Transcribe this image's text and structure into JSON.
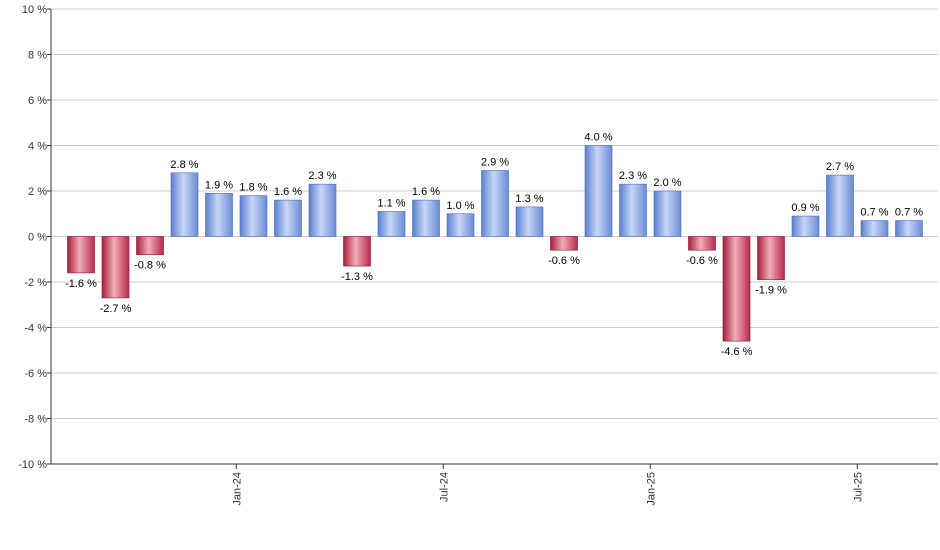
{
  "chart_data": {
    "type": "bar",
    "title": "",
    "xlabel": "",
    "ylabel": "",
    "ylim": [
      -10,
      10
    ],
    "y_ticks": [
      10,
      8,
      6,
      4,
      2,
      0,
      -2,
      -4,
      -6,
      -8,
      -10
    ],
    "y_tick_suffix": " %",
    "grid": true,
    "x_tick_labels": [
      {
        "label": "Jan-24",
        "after_index": 4
      },
      {
        "label": "Jul-24",
        "after_index": 10
      },
      {
        "label": "Jan-25",
        "after_index": 16
      },
      {
        "label": "Jul-25",
        "after_index": 22
      }
    ],
    "values": [
      -1.6,
      -2.7,
      -0.8,
      2.8,
      1.9,
      1.8,
      1.6,
      2.3,
      -1.3,
      1.1,
      1.6,
      1.0,
      2.9,
      1.3,
      -0.6,
      4.0,
      2.3,
      2.0,
      -0.6,
      -4.6,
      -1.9,
      0.9,
      2.7,
      0.7,
      0.7
    ],
    "data_labels": [
      "-1.6 %",
      "-2.7 %",
      "-0.8 %",
      "2.8 %",
      "1.9 %",
      "1.8 %",
      "1.6 %",
      "2.3 %",
      "-1.3 %",
      "1.1 %",
      "1.6 %",
      "1.0 %",
      "2.9 %",
      "1.3 %",
      "-0.6 %",
      "4.0 %",
      "2.3 %",
      "2.0 %",
      "-0.6 %",
      "-4.6 %",
      "-1.9 %",
      "0.9 %",
      "2.7 %",
      "0.7 %",
      "0.7 %"
    ],
    "colors": {
      "positive": "#7f9fe0",
      "negative": "#c8344f",
      "grid": "#cccccc",
      "axis": "#333333"
    }
  }
}
